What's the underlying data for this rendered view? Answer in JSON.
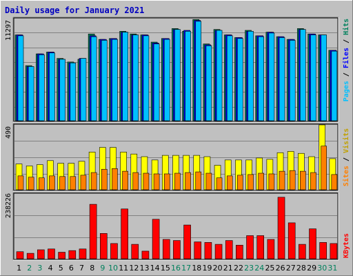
{
  "title": "Daily usage for January 2021",
  "colors": {
    "background": "#c0c0c0",
    "title": "#0000c0",
    "hits": "#00805c",
    "files": "#0000ff",
    "pages": "#00c0ff",
    "visits": "#ffff00",
    "sites": "#ff8000",
    "kbytes": "#ff0000",
    "weekend_label": "#00805c",
    "weekday_label": "#000000"
  },
  "legend": {
    "pages": "Pages",
    "files": "Files",
    "hits": "Hits",
    "visits": "Visits",
    "sites": "Sites",
    "kbytes": "KBytes",
    "separator": "/"
  },
  "chart_data": [
    {
      "type": "bar",
      "panel": "hits-files-pages",
      "x": [
        1,
        2,
        3,
        4,
        5,
        6,
        7,
        8,
        9,
        10,
        11,
        12,
        13,
        14,
        15,
        16,
        17,
        18,
        19,
        20,
        21,
        22,
        23,
        24,
        25,
        26,
        27,
        28,
        29,
        30,
        31
      ],
      "ymax_label": "11297",
      "ylim": [
        0,
        11297
      ],
      "series": [
        {
          "name": "Hits",
          "values": [
            9500,
            6100,
            7400,
            7600,
            6900,
            6500,
            6800,
            9600,
            9000,
            9100,
            9900,
            9600,
            9500,
            8700,
            9100,
            10200,
            9900,
            11200,
            8500,
            10100,
            9500,
            9200,
            10000,
            9400,
            9800,
            9300,
            9000,
            10200,
            9600,
            9500,
            7800
          ]
        },
        {
          "name": "Files",
          "values": [
            9500,
            6000,
            7400,
            7600,
            6800,
            6400,
            6900,
            9400,
            9000,
            9100,
            9800,
            9500,
            9500,
            8600,
            9100,
            10100,
            10000,
            11100,
            8400,
            10000,
            9500,
            9200,
            9900,
            9400,
            9800,
            9300,
            9000,
            10100,
            9600,
            9500,
            7800
          ]
        },
        {
          "name": "Pages",
          "values": [
            9400,
            6000,
            7300,
            7500,
            6800,
            6400,
            6900,
            9300,
            8900,
            9000,
            9800,
            9500,
            9400,
            8500,
            9000,
            10100,
            9900,
            11000,
            8300,
            10000,
            9400,
            9100,
            9900,
            9300,
            9700,
            9200,
            8900,
            10100,
            9500,
            9500,
            7700
          ]
        }
      ]
    },
    {
      "type": "bar",
      "panel": "visits-sites",
      "x": [
        1,
        2,
        3,
        4,
        5,
        6,
        7,
        8,
        9,
        10,
        11,
        12,
        13,
        14,
        15,
        16,
        17,
        18,
        19,
        20,
        21,
        22,
        23,
        24,
        25,
        26,
        27,
        28,
        29,
        30,
        31
      ],
      "ymax_label": "490",
      "ylim": [
        0,
        490
      ],
      "series": [
        {
          "name": "Visits",
          "values": [
            195,
            180,
            190,
            220,
            200,
            200,
            215,
            285,
            320,
            320,
            285,
            270,
            250,
            225,
            260,
            260,
            260,
            260,
            250,
            185,
            225,
            225,
            225,
            240,
            230,
            280,
            290,
            275,
            250,
            490,
            235
          ]
        },
        {
          "name": "Sites",
          "values": [
            105,
            95,
            90,
            105,
            100,
            100,
            110,
            130,
            155,
            160,
            140,
            130,
            125,
            120,
            120,
            125,
            130,
            135,
            125,
            90,
            105,
            110,
            115,
            125,
            120,
            140,
            145,
            140,
            130,
            330,
            115
          ]
        }
      ]
    },
    {
      "type": "bar",
      "panel": "kbytes",
      "x": [
        1,
        2,
        3,
        4,
        5,
        6,
        7,
        8,
        9,
        10,
        11,
        12,
        13,
        14,
        15,
        16,
        17,
        18,
        19,
        20,
        21,
        22,
        23,
        24,
        25,
        26,
        27,
        28,
        29,
        30,
        31
      ],
      "ymax_label": "238226",
      "ylim": [
        0,
        238226
      ],
      "series": [
        {
          "name": "KBytes",
          "values": [
            26000,
            20000,
            33000,
            36000,
            24000,
            30000,
            36000,
            200000,
            93000,
            56000,
            183000,
            53000,
            28000,
            145000,
            71000,
            67000,
            124000,
            62000,
            60000,
            53000,
            67000,
            50000,
            85000,
            85000,
            71000,
            226000,
            132000,
            53000,
            110000,
            60000,
            56000
          ]
        }
      ]
    }
  ]
}
